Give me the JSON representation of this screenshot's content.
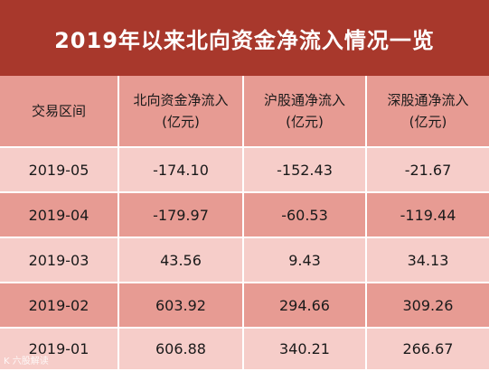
{
  "title": "2019年以来北向资金净流入情况一览",
  "headers": [
    {
      "line1": "交易区间",
      "line2": ""
    },
    {
      "line1": "北向资金净流入",
      "line2": "(亿元)"
    },
    {
      "line1": "沪股通净流入",
      "line2": "(亿元)"
    },
    {
      "line1": "深股通净流入",
      "line2": "(亿元)"
    }
  ],
  "rows": [
    [
      "2019-05",
      "-174.10",
      "-152.43",
      "-21.67"
    ],
    [
      "2019-04",
      "-179.97",
      "-60.53",
      "-119.44"
    ],
    [
      "2019-03",
      "43.56",
      "9.43",
      "34.13"
    ],
    [
      "2019-02",
      "603.92",
      "294.66",
      "309.26"
    ],
    [
      "2019-01",
      "606.88",
      "340.21",
      "266.67"
    ]
  ],
  "watermark": "K 六股解读",
  "colors": {
    "title_bg": "#a8382c",
    "header_bg": "#e79b93",
    "row_light": "#f6cdc9",
    "row_dark": "#e79b93"
  }
}
